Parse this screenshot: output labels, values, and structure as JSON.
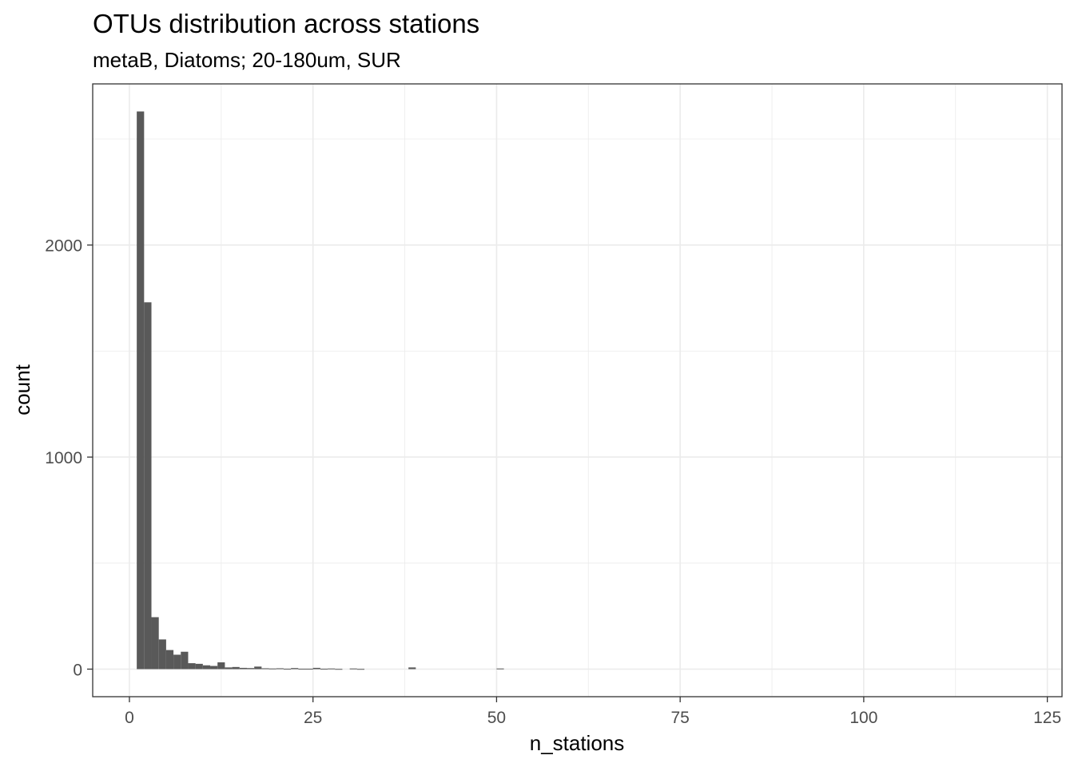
{
  "chart_data": {
    "type": "bar",
    "title": "OTUs distribution across stations",
    "subtitle": "metaB, Diatoms; 20-180um, SUR",
    "xlabel": "n_stations",
    "ylabel": "count",
    "xlim": [
      -5,
      127
    ],
    "ylim": [
      -130,
      2760
    ],
    "x_ticks": [
      0,
      25,
      50,
      75,
      100,
      125
    ],
    "x_tick_labels": [
      "0",
      "25",
      "50",
      "75",
      "100",
      "125"
    ],
    "y_ticks": [
      0,
      1000,
      2000
    ],
    "y_tick_labels": [
      "0",
      "1000",
      "2000"
    ],
    "grid": true,
    "bar_color": "#595959",
    "bins": [
      {
        "x0": 1,
        "x1": 2,
        "value": 2630
      },
      {
        "x0": 2,
        "x1": 3,
        "value": 1730
      },
      {
        "x0": 3,
        "x1": 4,
        "value": 245
      },
      {
        "x0": 4,
        "x1": 5,
        "value": 140
      },
      {
        "x0": 5,
        "x1": 6,
        "value": 90
      },
      {
        "x0": 6,
        "x1": 7,
        "value": 68
      },
      {
        "x0": 7,
        "x1": 8,
        "value": 82
      },
      {
        "x0": 8,
        "x1": 9,
        "value": 28
      },
      {
        "x0": 9,
        "x1": 10,
        "value": 25
      },
      {
        "x0": 10,
        "x1": 11,
        "value": 18
      },
      {
        "x0": 11,
        "x1": 12,
        "value": 15
      },
      {
        "x0": 12,
        "x1": 13,
        "value": 32
      },
      {
        "x0": 13,
        "x1": 14,
        "value": 8
      },
      {
        "x0": 14,
        "x1": 15,
        "value": 10
      },
      {
        "x0": 15,
        "x1": 16,
        "value": 6
      },
      {
        "x0": 16,
        "x1": 17,
        "value": 5
      },
      {
        "x0": 17,
        "x1": 18,
        "value": 12
      },
      {
        "x0": 18,
        "x1": 19,
        "value": 4
      },
      {
        "x0": 19,
        "x1": 20,
        "value": 3
      },
      {
        "x0": 20,
        "x1": 21,
        "value": 4
      },
      {
        "x0": 21,
        "x1": 22,
        "value": 2
      },
      {
        "x0": 22,
        "x1": 23,
        "value": 5
      },
      {
        "x0": 23,
        "x1": 24,
        "value": 2
      },
      {
        "x0": 24,
        "x1": 25,
        "value": 2
      },
      {
        "x0": 25,
        "x1": 26,
        "value": 6
      },
      {
        "x0": 26,
        "x1": 27,
        "value": 2
      },
      {
        "x0": 27,
        "x1": 28,
        "value": 3
      },
      {
        "x0": 28,
        "x1": 29,
        "value": 1
      },
      {
        "x0": 30,
        "x1": 31,
        "value": 3
      },
      {
        "x0": 31,
        "x1": 32,
        "value": 1
      },
      {
        "x0": 38,
        "x1": 39,
        "value": 8
      },
      {
        "x0": 50,
        "x1": 51,
        "value": 3
      }
    ]
  }
}
